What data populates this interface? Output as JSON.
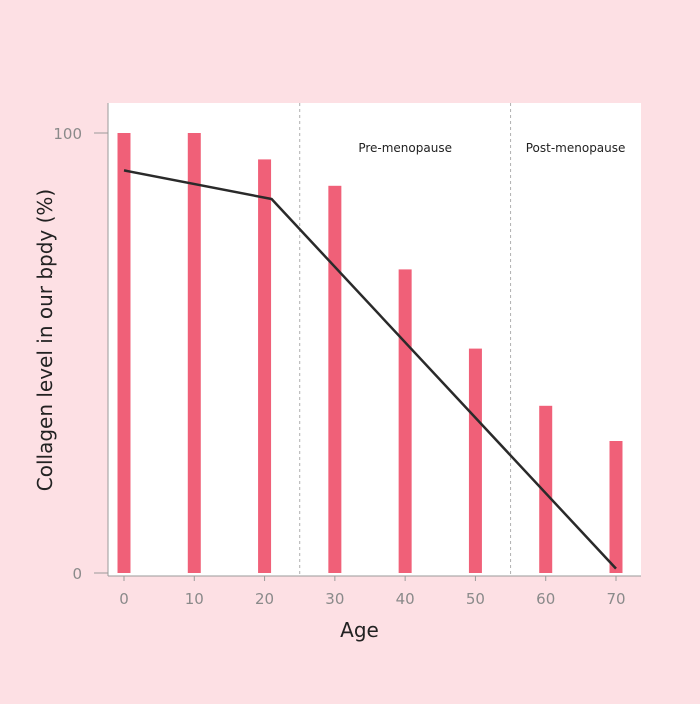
{
  "chart_data": {
    "type": "bar",
    "categories": [
      "0",
      "10",
      "20",
      "30",
      "40",
      "50",
      "60",
      "70"
    ],
    "x": [
      0,
      10,
      20,
      30,
      40,
      50,
      60,
      70
    ],
    "values": [
      100,
      100,
      94,
      88,
      69,
      51,
      38,
      30
    ],
    "line": {
      "x": [
        0,
        21,
        70
      ],
      "y": [
        91.5,
        85,
        1
      ]
    },
    "regions": [
      {
        "label": "Pre-menopause",
        "x_start": 25,
        "x_end": 55
      },
      {
        "label": "Post-menopause",
        "x_start": 55,
        "x_end": 73.5
      }
    ],
    "title": "",
    "xlabel": "Age",
    "ylabel": "Collagen level in our bpdy (%)",
    "xlim": [
      -2,
      73.5
    ],
    "ylim": [
      0,
      100
    ],
    "y_ticks": [
      "0",
      "100"
    ],
    "grid": false,
    "colors": {
      "background": "#fde0e4",
      "plot_background": "#ffffff",
      "bar": "#f06078",
      "line": "#2a2a2a",
      "axis": "#9a9a9a",
      "divider": "#b0b0b0"
    }
  }
}
